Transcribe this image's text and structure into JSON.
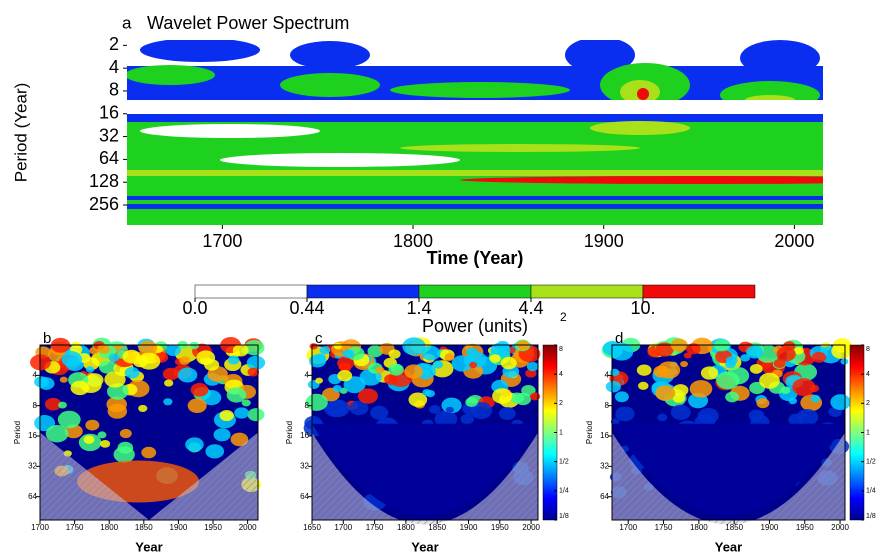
{
  "chart_data": [
    {
      "type": "contour",
      "panel": "a",
      "title": "Wavelet Power Spectrum",
      "xlabel": "Time (Year)",
      "ylabel": "Period (Year)",
      "xlim": [
        1650,
        2015
      ],
      "xticks": [
        1700,
        1800,
        1900,
        2000
      ],
      "ylim": [
        1.7,
        470
      ],
      "yticks": [
        2,
        4,
        8,
        16,
        32,
        64,
        128,
        256
      ],
      "log_y": true,
      "y_reversed": true,
      "colorbar": {
        "label": "Power (units)",
        "label_sup": "2",
        "levels": [
          {
            "value": 0,
            "label": "0.0"
          },
          0.44,
          1.4,
          4.4,
          {
            "value": 10,
            "label": "10."
          }
        ],
        "colors": [
          "#ffffff",
          "#0a2ef0",
          "#1fd11f",
          "#a8e01a",
          "#f00a0a"
        ]
      }
    },
    {
      "type": "wavelet",
      "panel": "b",
      "xlabel": "Year",
      "ylabel": "Period",
      "xlim": [
        1700,
        2015
      ],
      "xticks": [
        1700,
        1750,
        1800,
        1850,
        1900,
        1950,
        2000
      ],
      "ylim": [
        2,
        109
      ],
      "yticks": [
        4,
        8,
        16,
        32,
        64
      ],
      "log_y": true,
      "y_reversed": true
    },
    {
      "type": "wavelet",
      "panel": "c",
      "xlabel": "Year",
      "ylabel": "Period",
      "xlim": [
        1650,
        2011
      ],
      "xticks": [
        1650,
        1700,
        1750,
        1800,
        1850,
        1900,
        1950,
        2000
      ],
      "ylim": [
        2,
        109
      ],
      "yticks": [
        4,
        8,
        16,
        32,
        64
      ],
      "log_y": true,
      "y_reversed": true,
      "colorbar": {
        "ticks": [
          8,
          4,
          2,
          1,
          {
            "value": 0.5,
            "label": "1/2"
          },
          {
            "value": 0.25,
            "label": "1/4"
          },
          {
            "value": 0.125,
            "label": "1/8"
          }
        ]
      }
    },
    {
      "type": "wavelet",
      "panel": "d",
      "xlabel": "Year",
      "ylabel": "Period",
      "xlim": [
        1677,
        2007
      ],
      "xticks": [
        1700,
        1750,
        1800,
        1850,
        1900,
        1950,
        2000
      ],
      "ylim": [
        2,
        109
      ],
      "yticks": [
        4,
        8,
        16,
        32,
        64
      ],
      "log_y": true,
      "y_reversed": true,
      "colorbar": {
        "ticks": [
          8,
          4,
          2,
          1,
          {
            "value": 0.5,
            "label": "1/2"
          },
          {
            "value": 0.25,
            "label": "1/4"
          },
          {
            "value": 0.125,
            "label": "1/8"
          }
        ]
      }
    }
  ]
}
